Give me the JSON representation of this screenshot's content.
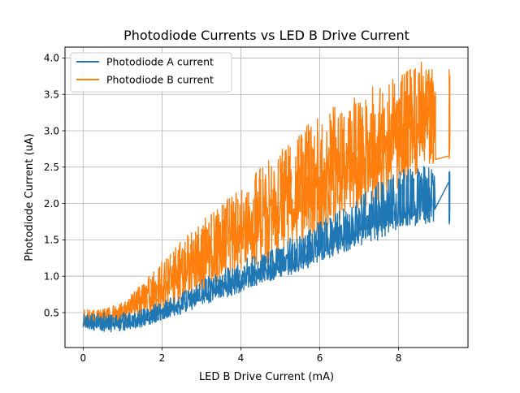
{
  "chart_data": {
    "type": "line",
    "title": "Photodiode Currents vs LED B Drive Current",
    "xlabel": "LED B Drive Current (mA)",
    "ylabel": "Photodiode Current (uA)",
    "xlim": [
      -0.46,
      9.76
    ],
    "ylim": [
      0.02,
      4.15
    ],
    "xticks": [
      0,
      2,
      4,
      6,
      8
    ],
    "yticks": [
      0.5,
      1.0,
      1.5,
      2.0,
      2.5,
      3.0,
      3.5,
      4.0
    ],
    "xtick_labels": [
      "0",
      "2",
      "4",
      "6",
      "8"
    ],
    "ytick_labels": [
      "0.5",
      "1.0",
      "1.5",
      "2.0",
      "2.5",
      "3.0",
      "3.5",
      "4.0"
    ],
    "grid": true,
    "legend_position": "top-left",
    "series": [
      {
        "name": "Photodiode A current",
        "color": "#1f77b4",
        "x": [
          0.0,
          0.5,
          1.0,
          1.5,
          2.0,
          2.5,
          3.0,
          3.5,
          4.0,
          4.5,
          5.0,
          5.5,
          6.0,
          6.5,
          7.0,
          7.5,
          8.0,
          8.5,
          9.0,
          9.3
        ],
        "y": [
          0.38,
          0.36,
          0.37,
          0.43,
          0.5,
          0.62,
          0.75,
          0.85,
          0.95,
          1.05,
          1.15,
          1.28,
          1.4,
          1.52,
          1.65,
          1.78,
          1.9,
          2.02,
          2.1,
          2.15
        ],
        "y_min": [
          0.3,
          0.22,
          0.25,
          0.3,
          0.4,
          0.48,
          0.6,
          0.68,
          0.78,
          0.9,
          0.98,
          1.05,
          1.2,
          1.3,
          1.42,
          1.5,
          1.65,
          1.7,
          1.75,
          1.7
        ],
        "y_max": [
          0.48,
          0.5,
          0.5,
          0.55,
          0.65,
          0.78,
          0.95,
          1.1,
          1.2,
          1.35,
          1.45,
          1.6,
          1.75,
          1.9,
          2.1,
          2.3,
          2.45,
          2.55,
          2.5,
          2.45
        ]
      },
      {
        "name": "Photodiode B current",
        "color": "#ff7f0e",
        "x": [
          0.0,
          0.5,
          1.0,
          1.5,
          2.0,
          2.5,
          3.0,
          3.5,
          4.0,
          4.5,
          5.0,
          5.5,
          6.0,
          6.5,
          7.0,
          7.5,
          8.0,
          8.5,
          9.0,
          9.3
        ],
        "y": [
          0.4,
          0.42,
          0.5,
          0.65,
          0.85,
          1.05,
          1.25,
          1.45,
          1.6,
          1.75,
          1.95,
          2.15,
          2.3,
          2.45,
          2.6,
          2.75,
          2.95,
          3.15,
          3.25,
          3.25
        ],
        "y_min": [
          0.3,
          0.3,
          0.35,
          0.45,
          0.5,
          0.6,
          0.8,
          0.95,
          1.05,
          1.15,
          1.25,
          1.45,
          1.55,
          1.75,
          1.9,
          2.0,
          2.2,
          2.4,
          2.55,
          2.55
        ],
        "y_max": [
          0.55,
          0.55,
          0.65,
          0.9,
          1.2,
          1.55,
          1.75,
          2.0,
          2.2,
          2.5,
          2.75,
          3.0,
          3.2,
          3.4,
          3.5,
          3.65,
          3.75,
          3.95,
          3.9,
          3.85
        ]
      }
    ]
  }
}
